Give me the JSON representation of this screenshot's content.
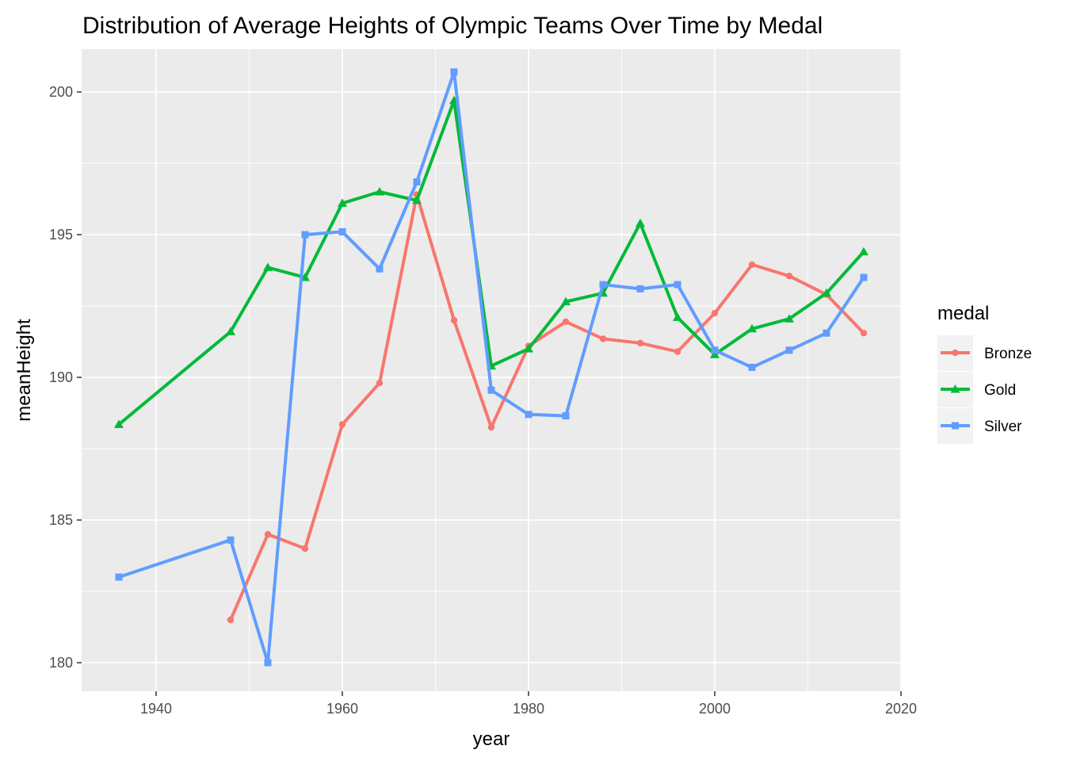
{
  "chart_data": {
    "type": "line",
    "title": "Distribution of Average Heights of Olympic Teams Over Time by Medal",
    "xlabel": "year",
    "ylabel": "meanHeight",
    "xlim": [
      1932,
      2020
    ],
    "ylim": [
      179,
      201.5
    ],
    "x_ticks": [
      1940,
      1960,
      1980,
      2000,
      2020
    ],
    "y_ticks": [
      180,
      185,
      190,
      195,
      200
    ],
    "grid": true,
    "legend": {
      "title": "medal",
      "position": "right"
    },
    "series": [
      {
        "name": "Bronze",
        "color": "#F8766D",
        "marker": "circle",
        "x": [
          1948,
          1952,
          1956,
          1960,
          1964,
          1968,
          1972,
          1976,
          1980,
          1984,
          1988,
          1992,
          1996,
          2000,
          2004,
          2008,
          2012,
          2016
        ],
        "y": [
          181.5,
          184.5,
          184.0,
          188.35,
          189.8,
          196.4,
          192.0,
          188.25,
          191.1,
          191.95,
          191.35,
          191.2,
          190.9,
          192.25,
          193.95,
          193.55,
          192.9,
          191.55
        ]
      },
      {
        "name": "Gold",
        "color": "#00BA38",
        "marker": "triangle",
        "x": [
          1936,
          1948,
          1952,
          1956,
          1960,
          1964,
          1968,
          1972,
          1976,
          1980,
          1984,
          1988,
          1992,
          1996,
          2000,
          2004,
          2008,
          2012,
          2016
        ],
        "y": [
          188.35,
          191.6,
          193.85,
          193.5,
          196.1,
          196.5,
          196.2,
          199.7,
          190.4,
          191.0,
          192.65,
          192.95,
          195.4,
          192.1,
          190.8,
          191.7,
          192.05,
          192.95,
          194.4
        ]
      },
      {
        "name": "Silver",
        "color": "#619CFF",
        "marker": "square",
        "x": [
          1936,
          1948,
          1952,
          1956,
          1960,
          1964,
          1968,
          1972,
          1976,
          1980,
          1984,
          1988,
          1992,
          1996,
          2000,
          2004,
          2008,
          2012,
          2016
        ],
        "y": [
          183.0,
          184.3,
          180.0,
          195.0,
          195.1,
          193.8,
          196.85,
          200.7,
          189.55,
          188.7,
          188.65,
          193.25,
          193.1,
          193.25,
          190.95,
          190.35,
          190.95,
          191.55,
          193.5
        ]
      }
    ]
  }
}
